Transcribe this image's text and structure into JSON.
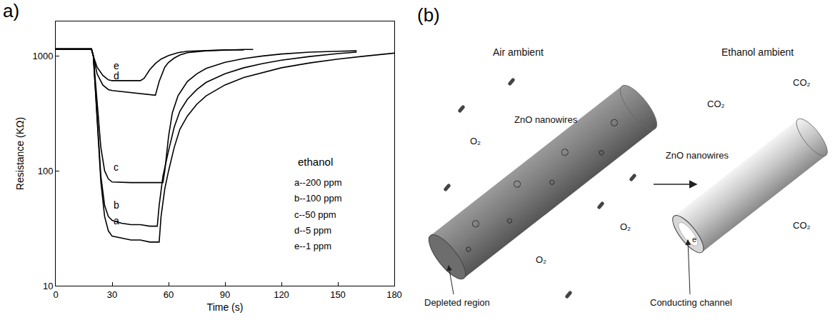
{
  "chart_data": {
    "type": "line",
    "panel_label": "a)",
    "x_label": "Time (s)",
    "y_label": "Resistance (KΩ)",
    "log": "y",
    "grid": false,
    "legend_title": "ethanol",
    "xlim": [
      0,
      180
    ],
    "xticks": [
      0,
      30,
      60,
      90,
      120,
      150,
      180
    ],
    "ylim": [
      10,
      2000
    ],
    "yticks": [
      10,
      100,
      1000
    ],
    "series": [
      {
        "name": "a--200 ppm",
        "label": "a",
        "color": "#000000",
        "x": [
          0,
          10,
          19,
          20,
          22,
          24,
          26,
          28,
          30,
          35,
          40,
          45,
          50,
          55,
          56,
          58,
          60,
          63,
          66,
          70,
          75,
          80,
          90,
          100,
          110,
          120,
          135,
          150,
          165,
          180
        ],
        "values": [
          1150,
          1150,
          1150,
          1000,
          300,
          80,
          40,
          30,
          27,
          26,
          25,
          25,
          24,
          24,
          40,
          70,
          100,
          160,
          230,
          300,
          380,
          450,
          560,
          650,
          720,
          790,
          870,
          940,
          1000,
          1060
        ]
      },
      {
        "name": "b--100 ppm",
        "label": "b",
        "color": "#000000",
        "x": [
          0,
          10,
          19,
          20,
          22,
          24,
          26,
          28,
          30,
          35,
          40,
          45,
          50,
          54,
          55,
          57,
          60,
          63,
          66,
          70,
          75,
          80,
          90,
          100,
          110,
          120,
          135,
          150,
          160
        ],
        "values": [
          1150,
          1150,
          1150,
          1000,
          300,
          90,
          50,
          40,
          37,
          35,
          34,
          34,
          33,
          33,
          50,
          90,
          150,
          240,
          330,
          420,
          510,
          590,
          700,
          790,
          860,
          920,
          990,
          1050,
          1080
        ]
      },
      {
        "name": "c--50 ppm",
        "label": "c",
        "color": "#000000",
        "x": [
          0,
          10,
          19,
          20,
          22,
          24,
          26,
          28,
          30,
          40,
          50,
          57,
          58,
          60,
          62,
          65,
          70,
          75,
          80,
          90,
          100,
          110,
          120,
          135,
          150,
          160
        ],
        "values": [
          1150,
          1150,
          1150,
          1000,
          400,
          160,
          100,
          85,
          80,
          79,
          79,
          79,
          100,
          200,
          320,
          450,
          600,
          700,
          780,
          880,
          950,
          1000,
          1040,
          1080,
          1100,
          1110
        ]
      },
      {
        "name": "d--5 ppm",
        "label": "d",
        "color": "#000000",
        "x": [
          0,
          10,
          19,
          20,
          22,
          25,
          28,
          30,
          40,
          50,
          53,
          55,
          58,
          60,
          63,
          66,
          70,
          80,
          90,
          100,
          105
        ],
        "values": [
          1150,
          1150,
          1150,
          1000,
          700,
          560,
          510,
          500,
          480,
          460,
          455,
          600,
          800,
          880,
          960,
          1020,
          1070,
          1110,
          1130,
          1140,
          1140
        ]
      },
      {
        "name": "e--1 ppm",
        "label": "e",
        "color": "#000000",
        "x": [
          0,
          10,
          19,
          20,
          22,
          25,
          28,
          30,
          35,
          40,
          45,
          47,
          50,
          53,
          56,
          60,
          65,
          70,
          80,
          90,
          100
        ],
        "values": [
          1150,
          1150,
          1150,
          1000,
          800,
          680,
          620,
          610,
          610,
          610,
          610,
          640,
          760,
          860,
          940,
          1010,
          1070,
          1100,
          1120,
          1130,
          1130
        ]
      }
    ]
  },
  "diagram": {
    "panel_label": "(b)",
    "left": {
      "title": "Air ambient",
      "material": "ZnO nanowires",
      "species": [
        "O₂",
        "O₂",
        "O₂"
      ],
      "pointer": "Depleted region"
    },
    "right": {
      "title": "Ethanol ambient",
      "material": "ZnO nanowires",
      "species": [
        "CO₂",
        "CO₂",
        "CO₂"
      ],
      "pointer": "Conducting channel",
      "carrier": "e"
    }
  }
}
